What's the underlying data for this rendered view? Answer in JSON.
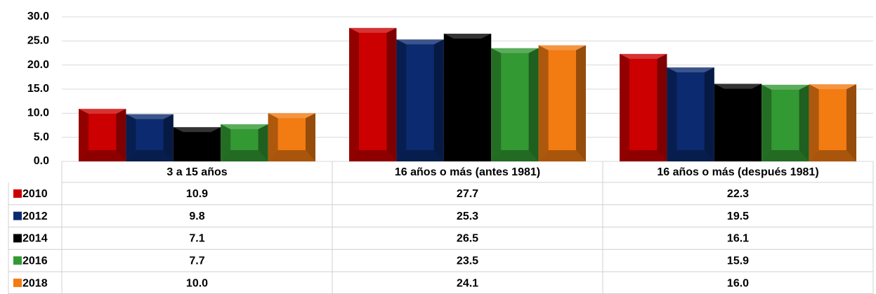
{
  "chart_data": {
    "type": "bar",
    "categories": [
      "3 a 15 años",
      "16 años o más (antes 1981)",
      "16 años o más (después 1981)"
    ],
    "series": [
      {
        "name": "2010",
        "color": "#cc0000",
        "values": [
          10.9,
          27.7,
          22.3
        ],
        "value_labels": [
          "10.9",
          "27.7",
          "22.3"
        ]
      },
      {
        "name": "2012",
        "color": "#0b2a6f",
        "values": [
          9.8,
          25.3,
          19.5
        ],
        "value_labels": [
          "9.8",
          "25.3",
          "19.5"
        ]
      },
      {
        "name": "2014",
        "color": "#000000",
        "values": [
          7.1,
          26.5,
          16.1
        ],
        "value_labels": [
          "7.1",
          "26.5",
          "16.1"
        ]
      },
      {
        "name": "2016",
        "color": "#339933",
        "values": [
          7.7,
          23.5,
          15.9
        ],
        "value_labels": [
          "7.7",
          "23.5",
          "15.9"
        ]
      },
      {
        "name": "2018",
        "color": "#f27b12",
        "values": [
          10.0,
          24.1,
          16.0
        ],
        "value_labels": [
          "10.0",
          "24.1",
          "16.0"
        ]
      }
    ],
    "ylim": [
      0,
      30
    ],
    "yticks": [
      {
        "value": 0,
        "label": "0.0"
      },
      {
        "value": 5,
        "label": "5.0"
      },
      {
        "value": 10,
        "label": "10.0"
      },
      {
        "value": 15,
        "label": "15.0"
      },
      {
        "value": 20,
        "label": "20.0"
      },
      {
        "value": 25,
        "label": "25.0"
      },
      {
        "value": 30,
        "label": "30.0"
      }
    ],
    "grid": true
  }
}
